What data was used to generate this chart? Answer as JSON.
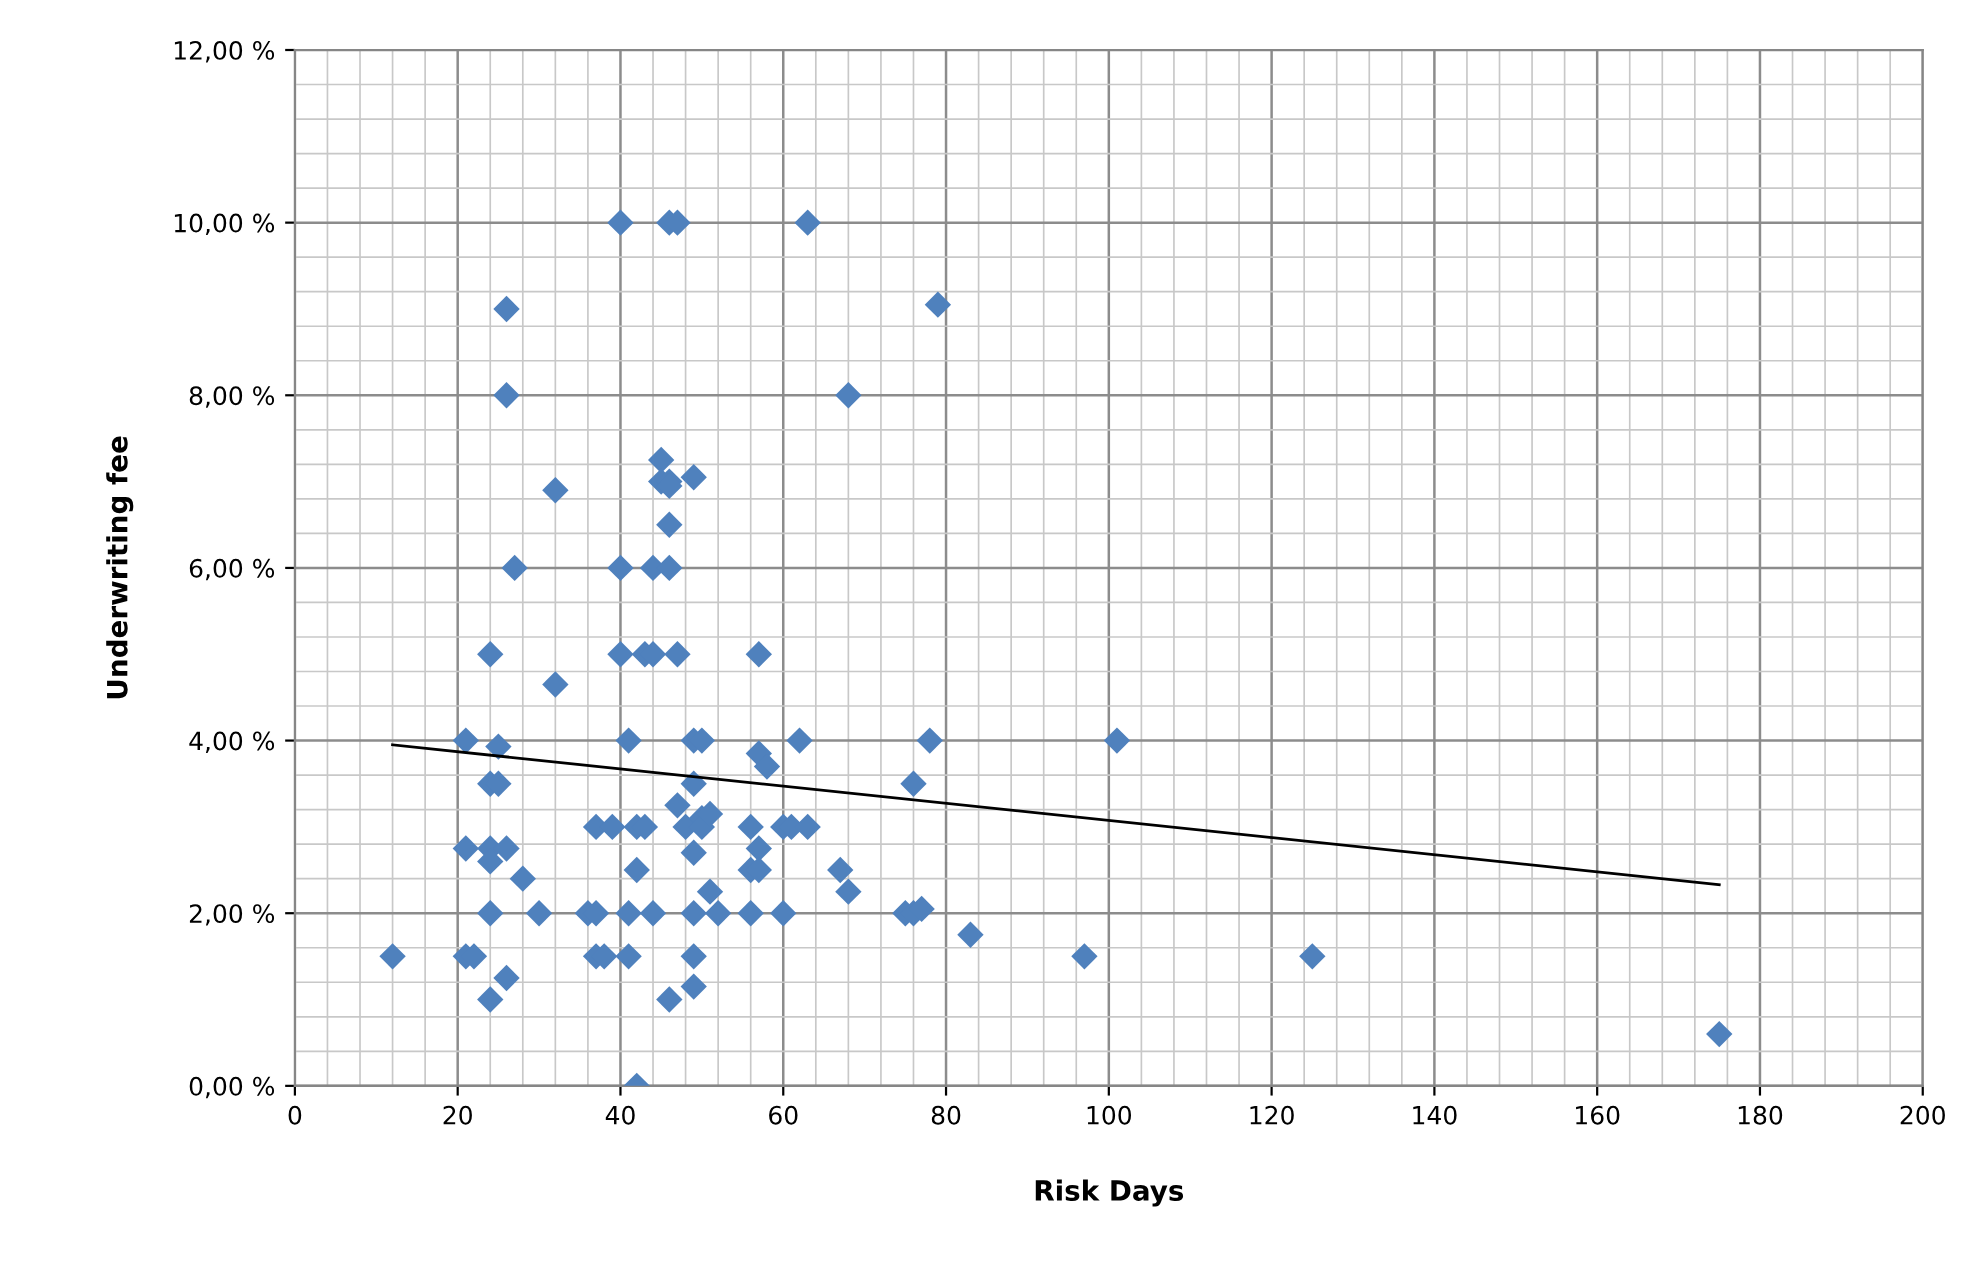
{
  "chart_data": {
    "type": "scatter",
    "xlabel": "Risk Days",
    "ylabel": "Underwriting fee",
    "xlim": [
      0,
      200
    ],
    "xticks": [
      0,
      20,
      40,
      60,
      80,
      100,
      120,
      140,
      160,
      180,
      200
    ],
    "ylim": [
      0,
      12
    ],
    "yticks": [
      {
        "value": 0,
        "label": "0,00 %"
      },
      {
        "value": 2,
        "label": "2,00 %"
      },
      {
        "value": 4,
        "label": "4,00 %"
      },
      {
        "value": 6,
        "label": "6,00 %"
      },
      {
        "value": 8,
        "label": "8,00 %"
      },
      {
        "value": 10,
        "label": "10,00 %"
      },
      {
        "value": 12,
        "label": "12,00 %"
      }
    ],
    "grid": true,
    "legend": false,
    "series": [
      {
        "marker": "diamond",
        "color": "#4f81bd",
        "x": [
          12,
          21,
          21,
          21,
          22,
          24,
          24,
          24,
          24,
          24,
          24,
          25,
          25,
          26,
          26,
          26,
          26,
          27,
          28,
          30,
          32,
          32,
          36,
          37,
          37,
          37,
          38,
          39,
          40,
          40,
          40,
          41,
          41,
          41,
          42,
          42,
          42,
          43,
          43,
          44,
          44,
          44,
          45,
          45,
          46,
          46,
          46,
          46,
          46,
          46,
          47,
          47,
          47,
          48,
          49,
          49,
          49,
          49,
          49,
          49,
          49,
          50,
          50,
          50,
          51,
          51,
          52,
          56,
          56,
          56,
          57,
          57,
          57,
          57,
          58,
          60,
          60,
          61,
          62,
          63,
          63,
          67,
          68,
          68,
          75,
          76,
          76,
          77,
          78,
          79,
          83,
          97,
          101,
          125,
          175
        ],
        "values": [
          1.5,
          4.0,
          2.75,
          1.5,
          1.5,
          5.0,
          3.5,
          2.75,
          2.6,
          2.0,
          1.0,
          3.93,
          3.5,
          9.0,
          8.0,
          2.75,
          1.25,
          6.0,
          2.4,
          2.0,
          6.9,
          4.65,
          2.0,
          2.0,
          3.0,
          1.5,
          1.5,
          3.0,
          10.0,
          6.0,
          5.0,
          4.0,
          2.0,
          1.5,
          3.0,
          2.5,
          0.0,
          3.0,
          5.0,
          5.0,
          6.0,
          2.0,
          7.25,
          7.0,
          10.0,
          7.0,
          6.5,
          6.0,
          6.95,
          1.0,
          10.0,
          5.0,
          3.25,
          3.0,
          7.05,
          4.0,
          3.5,
          2.7,
          2.0,
          1.5,
          1.15,
          4.0,
          3.1,
          3.0,
          3.15,
          2.25,
          2.0,
          3.0,
          2.5,
          2.0,
          5.0,
          3.85,
          2.75,
          2.5,
          3.7,
          3.0,
          2.0,
          3.0,
          4.0,
          10.0,
          3.0,
          2.5,
          8.0,
          2.25,
          2.0,
          3.5,
          2.0,
          2.05,
          4.0,
          9.05,
          1.75,
          1.5,
          4.0,
          1.5,
          0.6
        ]
      },
      {
        "type": "line",
        "marker": "none",
        "color": "#000000",
        "x": [
          12,
          175
        ],
        "values": [
          3.95,
          2.33
        ]
      }
    ]
  }
}
